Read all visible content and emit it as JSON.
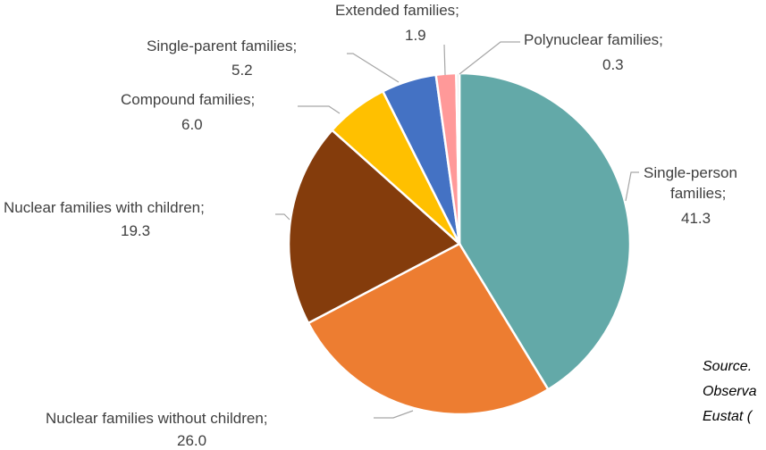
{
  "chart_data": {
    "type": "pie",
    "categories": [
      "Single-person families",
      "Nuclear families without children",
      "Nuclear families with children",
      "Compound families",
      "Single-parent families",
      "Extended families",
      "Polynuclear families"
    ],
    "values": [
      41.3,
      26.0,
      19.3,
      6.0,
      5.2,
      1.9,
      0.3
    ],
    "value_labels": [
      "41.3",
      "26.0",
      "19.3",
      "6.0",
      "5.2",
      "1.9",
      "0.3"
    ],
    "colors": [
      "#63a9a8",
      "#ed7d31",
      "#843c0c",
      "#ffc000",
      "#4472c4",
      "#ff9999",
      "#e8e8e8"
    ],
    "start": "12 o'clock, clockwise",
    "legend": "none (category labels placed beside slices)"
  },
  "labels": {
    "single_person_l1": "Single-person",
    "single_person_l2": "families;",
    "single_person_val": "41.3",
    "nuclear_without": "Nuclear families without children;",
    "nuclear_without_val": "26.0",
    "nuclear_with": "Nuclear families with children;",
    "nuclear_with_val": "19.3",
    "compound": "Compound families;",
    "compound_val": "6.0",
    "single_parent": "Single-parent families;",
    "single_parent_val": "5.2",
    "extended": "Extended families;",
    "extended_val": "1.9",
    "polynuclear": "Polynuclear families;",
    "polynuclear_val": "0.3"
  },
  "source": {
    "line1": "Source.",
    "line2": "Observa",
    "line3": "Eustat ("
  }
}
